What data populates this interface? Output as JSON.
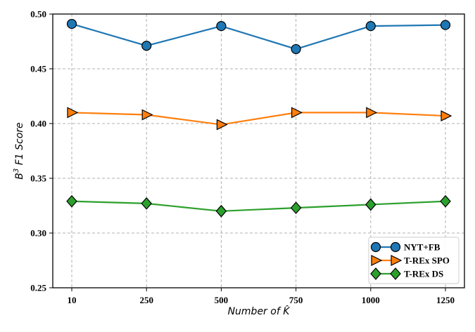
{
  "chart_data": {
    "type": "line",
    "categories": [
      "10",
      "250",
      "500",
      "750",
      "1000",
      "1250"
    ],
    "series": [
      {
        "name": "NYT+FB",
        "values": [
          0.491,
          0.471,
          0.489,
          0.468,
          0.489,
          0.49
        ],
        "color": "#1f77b4",
        "marker": "circle"
      },
      {
        "name": "T-REx SPO",
        "values": [
          0.41,
          0.408,
          0.399,
          0.41,
          0.41,
          0.407
        ],
        "color": "#ff7f0e",
        "marker": "triangle-right"
      },
      {
        "name": "T-REx DS",
        "values": [
          0.329,
          0.327,
          0.32,
          0.323,
          0.326,
          0.329
        ],
        "color": "#2ca02c",
        "marker": "diamond"
      }
    ],
    "xlabel": "Number of K̂",
    "ylabel_main": "B",
    "ylabel_sup": "3",
    "ylabel_rest": " F1 Score",
    "ylim": [
      0.25,
      0.5
    ],
    "yticks": [
      "0.25",
      "0.30",
      "0.35",
      "0.40",
      "0.45",
      "0.50"
    ],
    "grid": true,
    "legend_position": "lower-right"
  }
}
